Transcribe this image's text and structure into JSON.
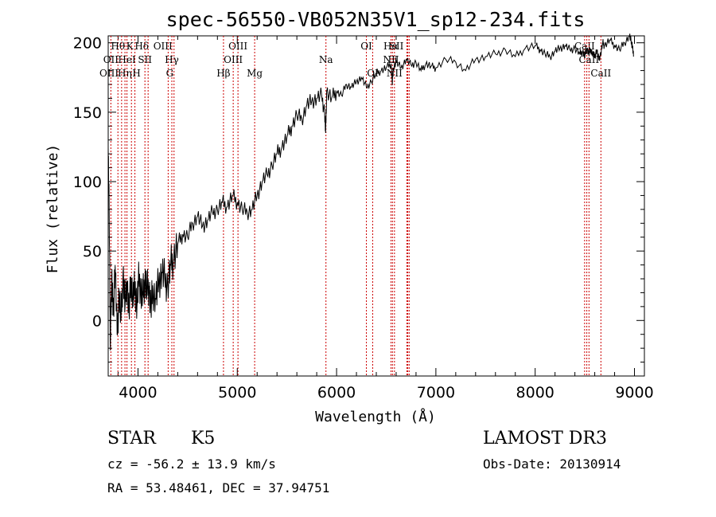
{
  "chart_data": {
    "type": "line",
    "title": "spec-56550-VB052N35V1_sp12-234.fits",
    "xlabel": "Wavelength (Å)",
    "ylabel": "Flux (relative)",
    "xlim": [
      3700,
      9100
    ],
    "ylim": [
      -40,
      205
    ],
    "xticks": [
      4000,
      5000,
      6000,
      7000,
      8000,
      9000
    ],
    "yticks": [
      0,
      50,
      100,
      150,
      200
    ],
    "series": [
      {
        "name": "flux",
        "x": [
          3700,
          3710,
          3720,
          3735,
          3750,
          3770,
          3790,
          3810,
          3830,
          3850,
          3870,
          3890,
          3910,
          3930,
          3950,
          3970,
          3990,
          4010,
          4030,
          4050,
          4070,
          4090,
          4110,
          4130,
          4150,
          4180,
          4210,
          4240,
          4270,
          4300,
          4330,
          4360,
          4400,
          4450,
          4500,
          4550,
          4600,
          4650,
          4700,
          4750,
          4800,
          4850,
          4900,
          4950,
          5000,
          5050,
          5100,
          5150,
          5200,
          5250,
          5300,
          5350,
          5400,
          5450,
          5500,
          5550,
          5600,
          5650,
          5700,
          5750,
          5800,
          5850,
          5880,
          5890,
          5900,
          5950,
          6000,
          6050,
          6100,
          6150,
          6200,
          6250,
          6300,
          6350,
          6400,
          6450,
          6500,
          6550,
          6560,
          6570,
          6600,
          6650,
          6700,
          6750,
          6800,
          6850,
          6900,
          6950,
          7000,
          7100,
          7200,
          7300,
          7400,
          7500,
          7600,
          7700,
          7800,
          7900,
          8000,
          8050,
          8100,
          8150,
          8200,
          8250,
          8300,
          8350,
          8400,
          8450,
          8480,
          8500,
          8520,
          8540,
          8560,
          8580,
          8600,
          8620,
          8640,
          8660,
          8680,
          8700,
          8750,
          8800,
          8850,
          8900,
          8950,
          8970,
          8980,
          8990
        ],
        "y": [
          125,
          80,
          -15,
          30,
          5,
          40,
          -10,
          20,
          0,
          35,
          10,
          28,
          5,
          30,
          15,
          25,
          10,
          32,
          20,
          18,
          30,
          22,
          25,
          8,
          22,
          15,
          28,
          35,
          30,
          25,
          40,
          45,
          55,
          62,
          60,
          70,
          75,
          68,
          72,
          78,
          80,
          85,
          82,
          90,
          85,
          80,
          78,
          80,
          90,
          100,
          105,
          112,
          120,
          125,
          132,
          140,
          148,
          145,
          155,
          158,
          160,
          162,
          150,
          135,
          165,
          160,
          165,
          162,
          170,
          168,
          172,
          175,
          168,
          172,
          178,
          180,
          182,
          185,
          170,
          182,
          186,
          182,
          188,
          184,
          186,
          180,
          185,
          183,
          182,
          188,
          186,
          180,
          188,
          190,
          192,
          195,
          190,
          196,
          198,
          195,
          192,
          190,
          194,
          196,
          198,
          195,
          196,
          192,
          194,
          190,
          196,
          192,
          195,
          192,
          190,
          195,
          188,
          192,
          200,
          198,
          202,
          198,
          195,
          200,
          205,
          200,
          198,
          190
        ]
      }
    ],
    "lines": [
      {
        "name": "Hθ",
        "x": 3798,
        "row": 0,
        "dx": 0,
        "color": "#cc0000"
      },
      {
        "name": "OII",
        "x": 3727,
        "row": 1,
        "dx": 0,
        "color": "#cc0000"
      },
      {
        "name": "OIII",
        "x": 3869,
        "row": 2,
        "dx": -20,
        "color": "#cc0000"
      },
      {
        "name": "K",
        "x": 3934,
        "row": 0,
        "dx": -2,
        "color": "#cc0000"
      },
      {
        "name": "HeI",
        "x": 3889,
        "row": 1,
        "dx": 0,
        "color": "#cc0000"
      },
      {
        "name": "Hη",
        "x": 3835,
        "row": 2,
        "dx": 4,
        "color": "#cc0000"
      },
      {
        "name": "Hδ",
        "x": 4102,
        "row": 0,
        "dx": -8,
        "color": "#cc0000"
      },
      {
        "name": "SII",
        "x": 4070,
        "row": 1,
        "dx": 0,
        "color": "#cc0000"
      },
      {
        "name": "H",
        "x": 3969,
        "row": 2,
        "dx": 2,
        "color": "#cc0000"
      },
      {
        "name": "OIII",
        "x": 4363,
        "row": 0,
        "dx": -14,
        "color": "#cc0000"
      },
      {
        "name": "Hγ",
        "x": 4341,
        "row": 1,
        "dx": 0,
        "color": "#cc0000"
      },
      {
        "name": "G",
        "x": 4304,
        "row": 2,
        "dx": 2,
        "color": "#cc0000"
      },
      {
        "name": "OIII",
        "x": 5007,
        "row": 0,
        "dx": 0,
        "color": "#cc0000"
      },
      {
        "name": "OIII",
        "x": 4959,
        "row": 1,
        "dx": 0,
        "color": "#cc0000"
      },
      {
        "name": "Hβ",
        "x": 4861,
        "row": 2,
        "dx": 0,
        "color": "#cc0000"
      },
      {
        "name": "Mg",
        "x": 5175,
        "row": 2,
        "dx": 0,
        "color": "#cc0000"
      },
      {
        "name": "Na",
        "x": 5893,
        "row": 1,
        "dx": 0,
        "color": "#cc0000"
      },
      {
        "name": "OI",
        "x": 6300,
        "row": 0,
        "dx": 0,
        "color": "#cc0000"
      },
      {
        "name": "OI",
        "x": 6364,
        "row": 2,
        "dx": 0,
        "color": "#cc0000"
      },
      {
        "name": "Hα",
        "x": 6563,
        "row": 0,
        "dx": -2,
        "color": "#cc0000"
      },
      {
        "name": "SII",
        "x": 6717,
        "row": 0,
        "dx": -14,
        "color": "#cc0000"
      },
      {
        "name": "NII",
        "x": 6548,
        "row": 1,
        "dx": 0,
        "color": "#cc0000"
      },
      {
        "name": "Li",
        "x": 6708,
        "row": 1,
        "dx": -18,
        "color": "#cc0000"
      },
      {
        "name": "NII",
        "x": 6583,
        "row": 2,
        "dx": 0,
        "color": "#cc0000"
      },
      {
        "name": "CaII",
        "x": 8498,
        "row": 0,
        "dx": 0,
        "color": "#cc0000"
      },
      {
        "name": "CaII",
        "x": 8542,
        "row": 1,
        "dx": 0,
        "color": "#cc0000"
      },
      {
        "name": "CaII",
        "x": 8662,
        "row": 2,
        "dx": 0,
        "color": "#cc0000"
      },
      {
        "name": "",
        "x": 6731,
        "row": -1,
        "dx": 0,
        "color": "#cc0000"
      },
      {
        "name": "",
        "x": 8520,
        "row": -1,
        "dx": 0,
        "color": "#cc0000"
      }
    ]
  },
  "info": {
    "class": "STAR",
    "subclass": "K5",
    "survey": "LAMOST DR3",
    "cz": "cz = -56.2 ± 13.9 km/s",
    "obs_date": "Obs-Date: 20130914",
    "coords": "RA =  53.48461, DEC =  37.94751"
  },
  "colors": {
    "line_marker": "#cc0000",
    "spectrum": "#000000"
  }
}
